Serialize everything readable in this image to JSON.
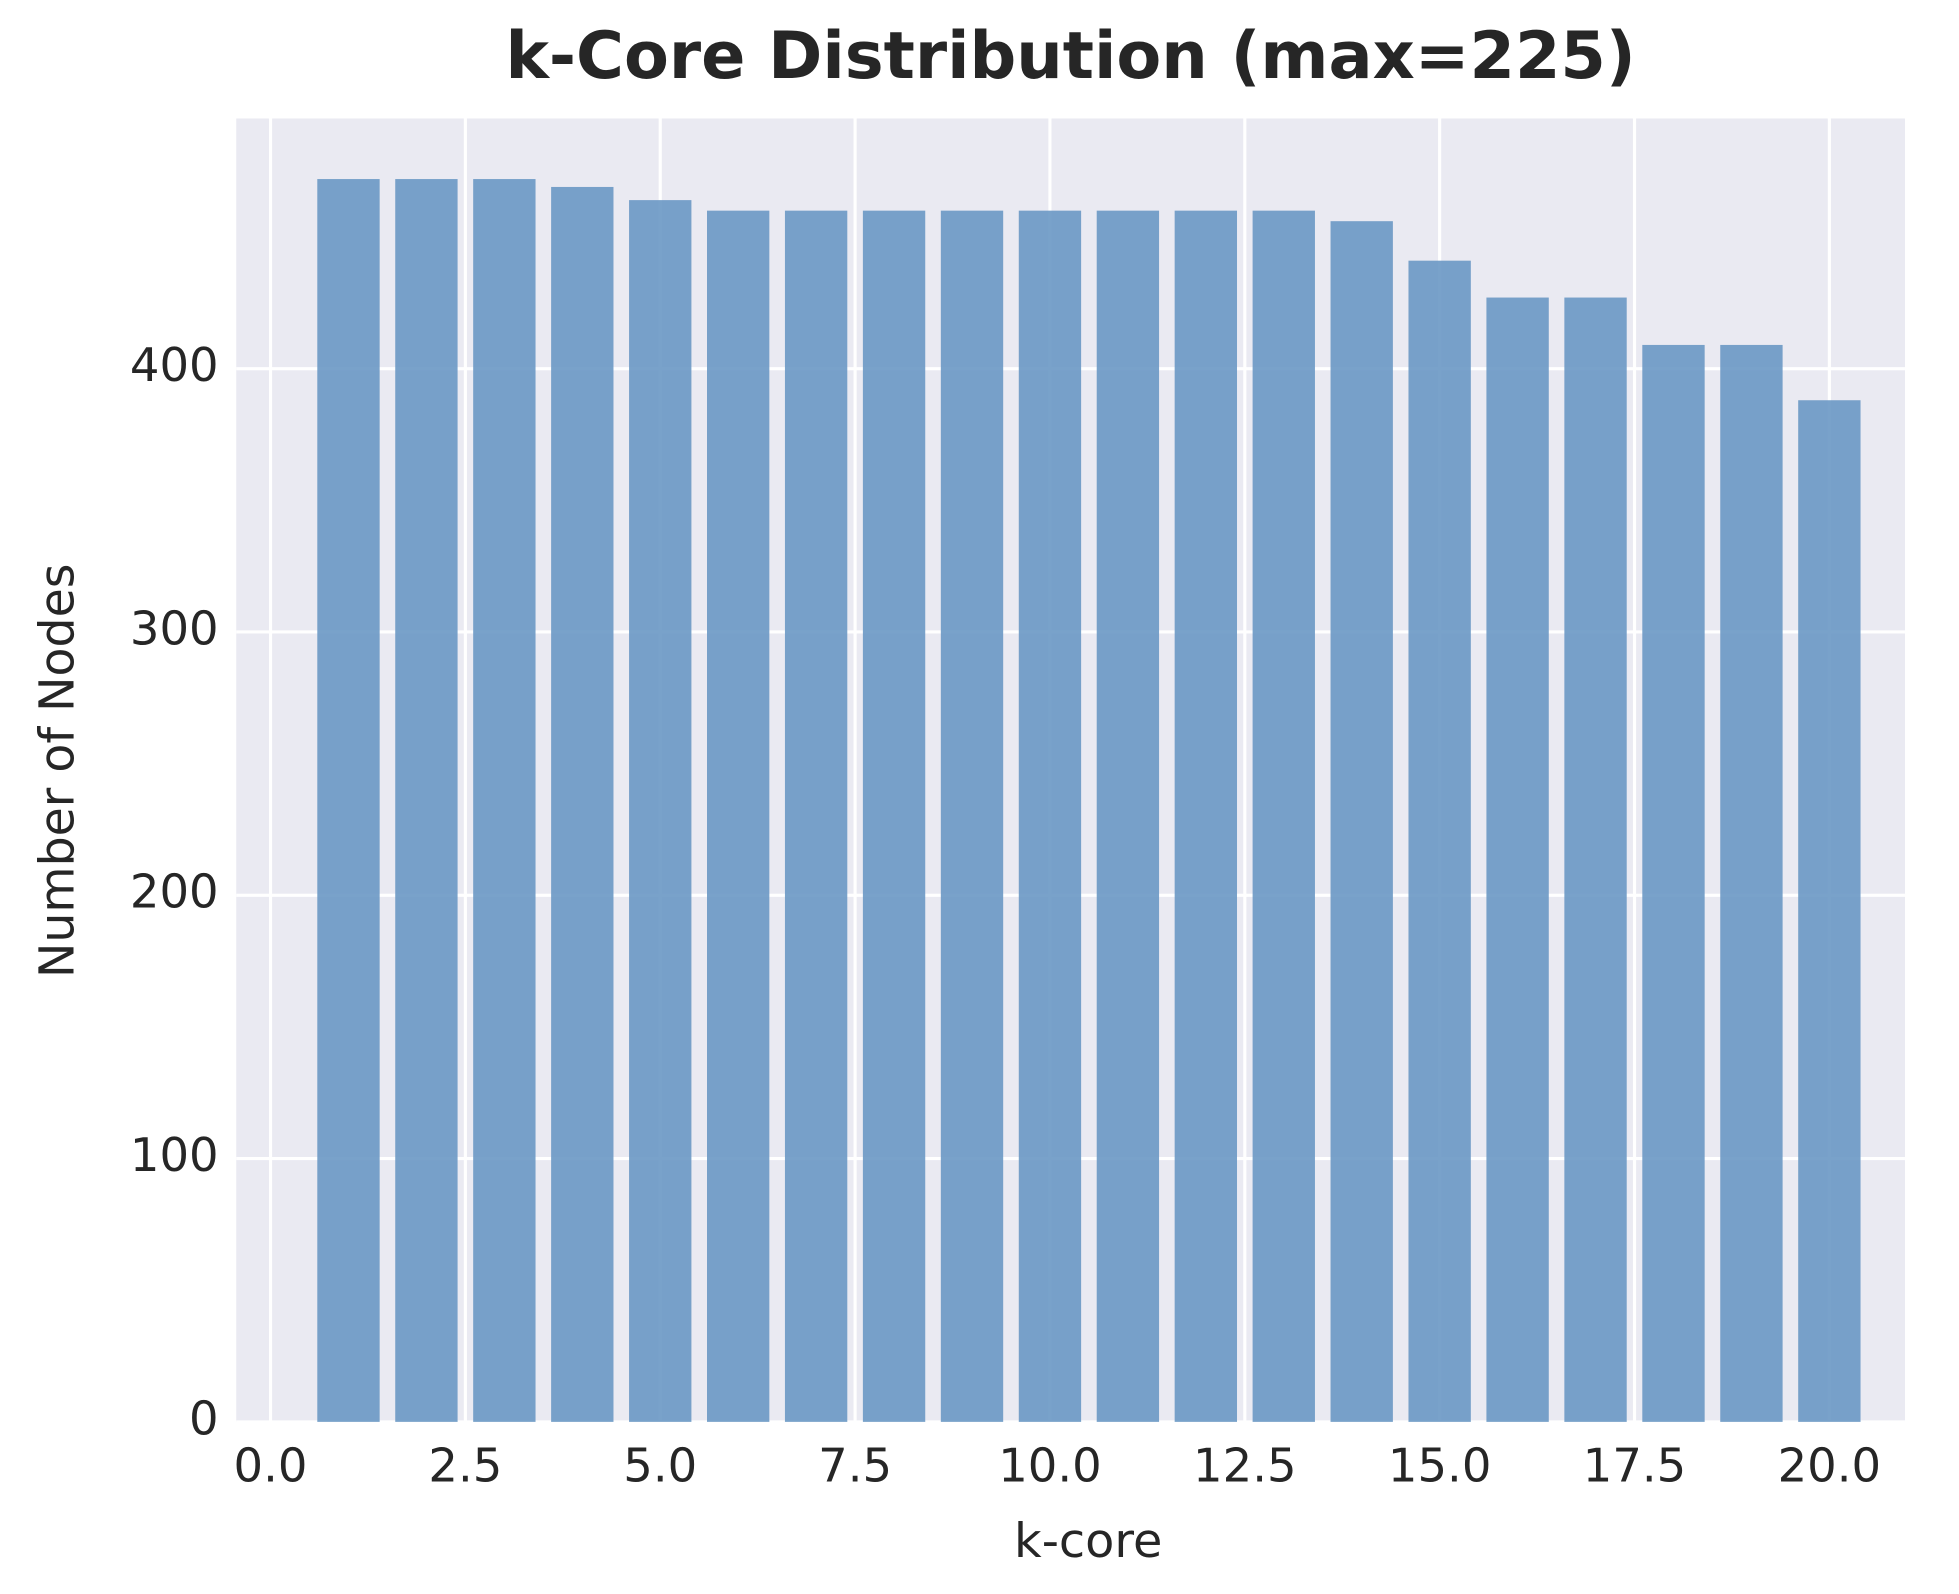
{
  "chart_data": {
    "type": "bar",
    "title": "k-Core Distribution (max=225)",
    "x_label": "k-core",
    "y_label": "Number of Nodes",
    "x": [
      1,
      2,
      3,
      4,
      5,
      6,
      7,
      8,
      9,
      10,
      11,
      12,
      13,
      14,
      15,
      16,
      17,
      18,
      19,
      20
    ],
    "values": [
      472,
      472,
      472,
      469,
      464,
      460,
      460,
      460,
      460,
      460,
      460,
      460,
      460,
      456,
      441,
      427,
      427,
      409,
      409,
      388
    ],
    "color": "#6a98c4",
    "bar_width": 0.8,
    "xlim": [
      -0.44,
      20.97
    ],
    "ylim": [
      0,
      495
    ],
    "xticks": [
      {
        "value": 0,
        "label": "0.0"
      },
      2.5,
      {
        "value": 5,
        "label": "5.0"
      },
      7.5,
      {
        "value": 10,
        "label": "10.0"
      },
      12.5,
      {
        "value": 15,
        "label": "15.0"
      },
      17.5,
      {
        "value": 20,
        "label": "20.0"
      }
    ],
    "yticks": [
      0,
      100,
      200,
      300,
      400
    ],
    "grid": true
  }
}
